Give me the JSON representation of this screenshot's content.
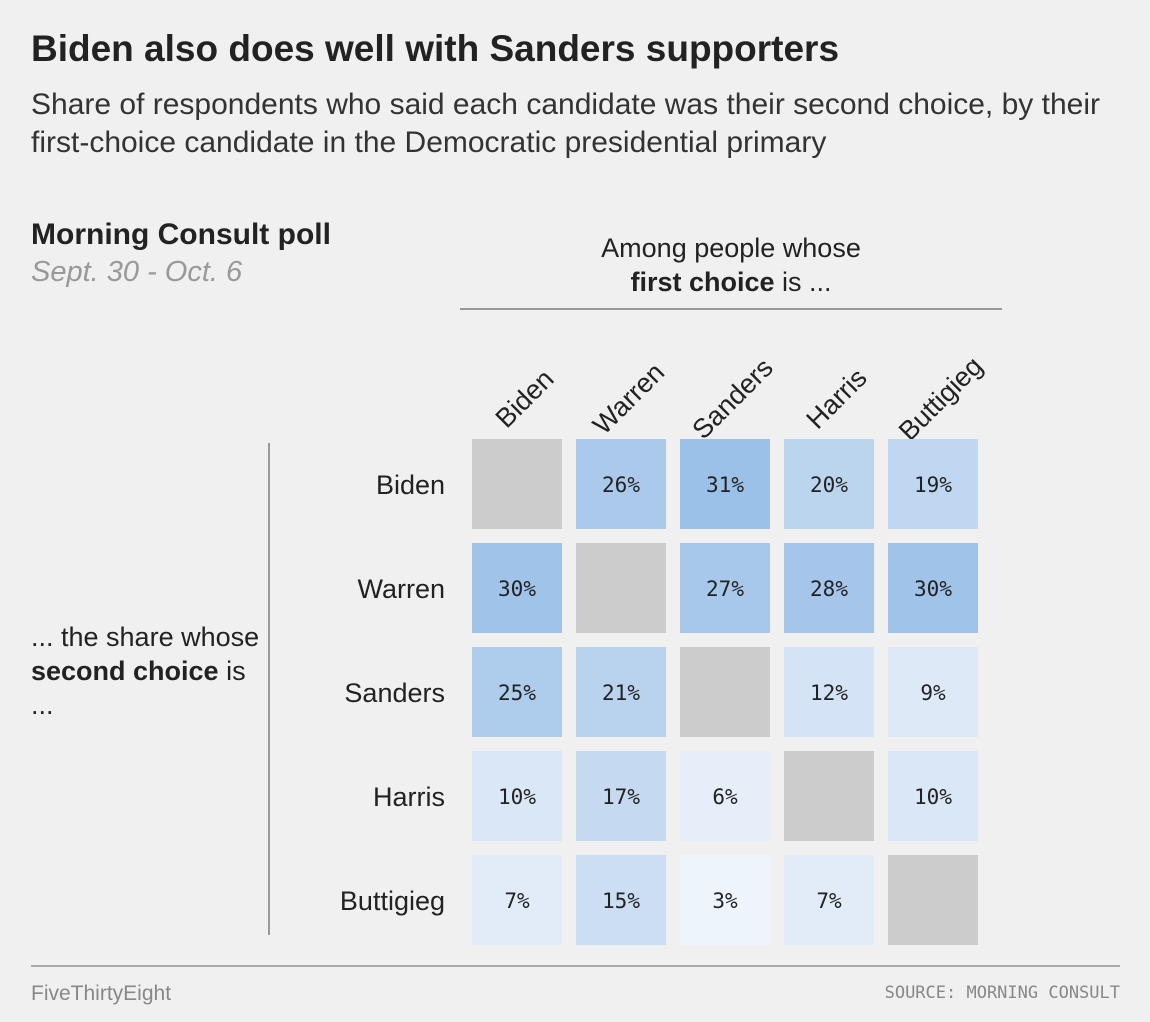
{
  "header": {
    "title": "Biden also does well with Sanders supporters",
    "subtitle": "Share of respondents who said each candidate was their second choice, by their first-choice candidate in the Democratic presidential primary"
  },
  "poll": {
    "name": "Morning Consult poll",
    "dates": "Sept. 30 - Oct. 6"
  },
  "axis": {
    "col_header_line1": "Among people whose",
    "col_header_bold": "first choice",
    "col_header_rest": " is ...",
    "row_header_line1": "... the share whose ",
    "row_header_bold": "second choice",
    "row_header_rest": " is ..."
  },
  "chart_data": {
    "type": "heatmap",
    "x_label": "first choice",
    "y_label": "second choice",
    "x_categories": [
      "Biden",
      "Warren",
      "Sanders",
      "Harris",
      "Buttigieg"
    ],
    "y_categories": [
      "Biden",
      "Warren",
      "Sanders",
      "Harris",
      "Buttigieg"
    ],
    "values": [
      [
        null,
        26,
        31,
        20,
        19
      ],
      [
        30,
        null,
        27,
        28,
        30
      ],
      [
        25,
        21,
        null,
        12,
        9
      ],
      [
        10,
        17,
        6,
        null,
        10
      ],
      [
        7,
        15,
        3,
        7,
        null
      ]
    ],
    "unit": "%",
    "colors": {
      "low": "#f7f9fd",
      "high": "#9cc1e8",
      "diagonal": "#cccccc",
      "text": "#222222"
    },
    "scale_max": 31
  },
  "footer": {
    "brand": "FiveThirtyEight",
    "source": "SOURCE: MORNING CONSULT"
  }
}
